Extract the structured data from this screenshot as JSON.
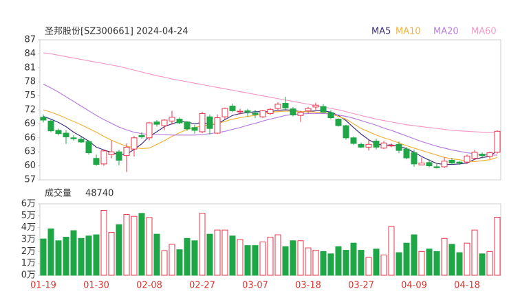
{
  "chart_data": [
    {
      "type": "candlestick",
      "title": "圣邦股份[SZ300661] 2024-04-24",
      "up_color": "#e8334a",
      "down_color": "#1fa647",
      "open": [
        70.4,
        69.6,
        67.6,
        67.0,
        66.0,
        65.7,
        65.2,
        61.6,
        60.4,
        62.4,
        63.0,
        62.2,
        63.6,
        66.5,
        66.0,
        69.4,
        68.6,
        69.6,
        70.0,
        69.4,
        68.2,
        67.3,
        70.5,
        67.0,
        70.5,
        72.8,
        71.6,
        71.8,
        71.3,
        70.5,
        71.2,
        72.3,
        73.4,
        72.2,
        70.8,
        71.8,
        72.6,
        72.7,
        71.4,
        70.0,
        68.6,
        66.0,
        64.6,
        64.0,
        65.3,
        63.8,
        64.3,
        64.6,
        63.6,
        62.8,
        60.2,
        60.7,
        59.8,
        59.8,
        61.2,
        60.8,
        60.8,
        61.6,
        62.5,
        62.0,
        62.9
      ],
      "high": [
        71.0,
        69.9,
        68.0,
        67.6,
        66.6,
        66.2,
        65.5,
        62.4,
        63.5,
        65.4,
        63.4,
        64.8,
        66.4,
        67.2,
        69.4,
        69.8,
        70.0,
        71.8,
        70.4,
        69.6,
        68.8,
        71.6,
        71.0,
        71.0,
        72.5,
        73.3,
        72.2,
        72.2,
        72.0,
        72.0,
        72.4,
        73.6,
        74.8,
        72.6,
        71.8,
        72.6,
        73.5,
        73.2,
        71.9,
        70.2,
        68.8,
        66.3,
        65.0,
        65.6,
        65.8,
        65.3,
        64.8,
        65.2,
        64.0,
        63.5,
        61.8,
        61.4,
        60.6,
        61.8,
        61.7,
        61.0,
        62.4,
        63.4,
        62.9,
        63.0,
        67.6
      ],
      "low": [
        69.3,
        67.2,
        66.5,
        64.7,
        65.4,
        64.9,
        62.4,
        60.0,
        60.0,
        61.6,
        60.1,
        58.7,
        62.0,
        65.8,
        65.5,
        68.4,
        67.6,
        68.8,
        68.9,
        67.5,
        66.9,
        67.0,
        66.7,
        66.8,
        70.0,
        71.5,
        71.0,
        70.6,
        70.2,
        70.2,
        70.9,
        71.8,
        72.0,
        70.6,
        69.4,
        71.2,
        72.0,
        71.4,
        70.0,
        68.4,
        65.6,
        64.5,
        63.8,
        63.3,
        63.5,
        63.6,
        64.0,
        62.7,
        61.4,
        59.8,
        60.2,
        59.7,
        59.4,
        59.5,
        60.3,
        60.2,
        60.4,
        61.3,
        61.6,
        61.5,
        62.6
      ],
      "close": [
        69.8,
        67.5,
        66.9,
        66.2,
        65.8,
        65.1,
        62.8,
        60.3,
        63.2,
        63.0,
        61.2,
        64.0,
        66.0,
        66.2,
        69.2,
        68.9,
        69.8,
        70.4,
        69.2,
        67.9,
        67.6,
        71.2,
        68.0,
        70.3,
        72.3,
        71.8,
        71.7,
        71.5,
        71.0,
        71.8,
        72.1,
        73.2,
        72.4,
        70.9,
        71.5,
        72.3,
        73.0,
        71.5,
        70.3,
        68.6,
        66.0,
        64.8,
        64.0,
        64.6,
        64.0,
        64.9,
        64.4,
        63.3,
        61.7,
        60.4,
        60.6,
        60.0,
        59.6,
        61.0,
        60.6,
        60.6,
        62.1,
        62.9,
        62.2,
        62.8,
        67.4
      ],
      "series": [
        {
          "name": "MA5",
          "color": "#3d2f7a",
          "values": [
            70.6,
            70.0,
            69.3,
            68.4,
            67.2,
            66.3,
            65.3,
            64.0,
            63.4,
            62.9,
            62.4,
            62.5,
            63.5,
            64.7,
            66.3,
            67.3,
            68.4,
            69.0,
            69.5,
            69.4,
            69.0,
            69.3,
            68.8,
            69.0,
            69.9,
            70.8,
            71.2,
            71.4,
            71.6,
            71.6,
            71.6,
            71.9,
            72.0,
            71.9,
            71.6,
            71.6,
            71.8,
            71.8,
            71.5,
            70.8,
            69.7,
            68.2,
            66.8,
            65.6,
            64.7,
            64.4,
            64.5,
            64.2,
            63.7,
            62.9,
            62.0,
            61.2,
            60.5,
            60.3,
            60.3,
            60.4,
            60.6,
            61.4,
            61.8,
            62.0,
            63.3
          ]
        },
        {
          "name": "MA10",
          "color": "#f2b13c",
          "values": [
            72.0,
            71.5,
            70.9,
            70.2,
            69.5,
            68.8,
            68.0,
            67.2,
            66.3,
            65.5,
            64.8,
            64.2,
            63.9,
            63.7,
            63.8,
            64.6,
            65.4,
            66.3,
            67.1,
            67.8,
            68.2,
            68.6,
            68.8,
            69.1,
            69.5,
            70.0,
            70.3,
            70.6,
            70.8,
            71.2,
            71.5,
            71.6,
            71.7,
            71.7,
            71.6,
            71.6,
            71.5,
            71.4,
            71.1,
            70.6,
            70.0,
            69.0,
            68.0,
            67.3,
            66.6,
            66.0,
            65.5,
            64.9,
            64.3,
            63.8,
            63.3,
            62.8,
            62.3,
            61.8,
            61.5,
            61.3,
            61.0,
            60.9,
            61.1,
            61.3,
            61.8
          ]
        },
        {
          "name": "MA20",
          "color": "#b77ede",
          "values": [
            77.5,
            76.7,
            75.8,
            74.8,
            73.8,
            72.8,
            71.8,
            70.8,
            69.9,
            69.1,
            68.3,
            67.7,
            67.2,
            66.9,
            66.7,
            66.7,
            66.7,
            66.6,
            66.6,
            66.6,
            66.6,
            66.7,
            66.9,
            67.1,
            67.4,
            67.8,
            68.2,
            68.7,
            69.1,
            69.6,
            70.0,
            70.4,
            70.8,
            71.0,
            71.1,
            71.2,
            71.2,
            71.2,
            71.1,
            70.9,
            70.6,
            70.2,
            69.7,
            69.2,
            68.7,
            68.1,
            67.6,
            67.0,
            66.4,
            65.8,
            65.2,
            64.7,
            64.2,
            63.8,
            63.4,
            63.1,
            62.8,
            62.6,
            62.4,
            62.3,
            62.3
          ]
        },
        {
          "name": "MA60",
          "color": "#f39bc8",
          "values": [
            84.2,
            84.0,
            83.7,
            83.4,
            83.1,
            82.8,
            82.5,
            82.2,
            81.9,
            81.6,
            81.3,
            80.9,
            80.5,
            80.1,
            79.7,
            79.3,
            79.0,
            78.6,
            78.3,
            78.0,
            77.7,
            77.4,
            77.1,
            76.8,
            76.5,
            76.2,
            75.9,
            75.6,
            75.3,
            75.0,
            74.7,
            74.4,
            74.1,
            73.8,
            73.5,
            73.2,
            72.9,
            72.6,
            72.3,
            72.0,
            71.6,
            71.2,
            70.8,
            70.4,
            70.0,
            69.7,
            69.4,
            69.1,
            68.8,
            68.6,
            68.4,
            68.2,
            68.0,
            67.8,
            67.6,
            67.5,
            67.4,
            67.3,
            67.2,
            67.1,
            67.1
          ]
        }
      ],
      "ylim": [
        57,
        87
      ],
      "yticks": [
        87,
        84,
        81,
        78,
        75,
        72,
        69,
        66,
        63,
        60,
        57
      ]
    },
    {
      "type": "bar",
      "title": "成交量",
      "categories": [
        "01-19",
        null,
        null,
        null,
        null,
        null,
        null,
        "01-30",
        null,
        null,
        null,
        null,
        null,
        null,
        "02-08",
        null,
        null,
        null,
        null,
        null,
        null,
        "02-27",
        null,
        null,
        null,
        null,
        null,
        null,
        "03-07",
        null,
        null,
        null,
        null,
        null,
        null,
        "03-18",
        null,
        null,
        null,
        null,
        null,
        null,
        "03-27",
        null,
        null,
        null,
        null,
        null,
        null,
        "04-09",
        null,
        null,
        null,
        null,
        null,
        null,
        "04-18",
        null,
        null,
        null,
        null
      ],
      "values": [
        30500,
        39000,
        29000,
        32000,
        37500,
        31000,
        33000,
        34000,
        54500,
        36000,
        42500,
        51000,
        49500,
        52000,
        48500,
        34500,
        20500,
        26000,
        21500,
        31000,
        29000,
        52000,
        34500,
        38000,
        38000,
        33000,
        30000,
        25000,
        25000,
        28000,
        32000,
        34000,
        24000,
        29000,
        29000,
        23000,
        21000,
        20000,
        18000,
        24000,
        21000,
        27000,
        21000,
        15000,
        22000,
        17000,
        41000,
        19000,
        27000,
        34000,
        20000,
        22000,
        20000,
        31000,
        26000,
        19000,
        27000,
        38000,
        18000,
        20000,
        48740
      ],
      "ylim": [
        0,
        60000
      ],
      "yticks": [
        {
          "value": 60000,
          "label": "6万"
        },
        {
          "value": 50000,
          "label": "5万"
        },
        {
          "value": 40000,
          "label": "4万"
        },
        {
          "value": 30000,
          "label": "3万"
        },
        {
          "value": 20000,
          "label": "2万"
        },
        {
          "value": 10000,
          "label": "1万"
        },
        {
          "value": 0,
          "label": "0万"
        }
      ]
    }
  ]
}
